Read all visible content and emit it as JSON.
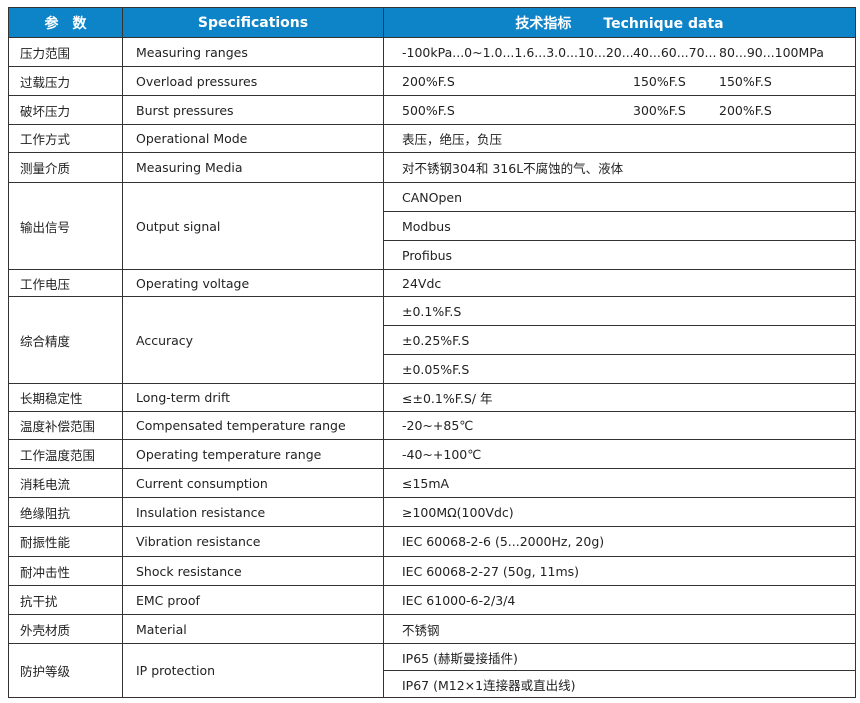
{
  "header": {
    "param": "参　数",
    "spec": "Specifications",
    "tech_cn": "技术指标",
    "tech_en": "Technique data"
  },
  "header_color": "#0e84c8",
  "rows": [
    {
      "cn": "压力范围",
      "en": "Measuring ranges",
      "h": 29,
      "cols": [
        "-100kPa...0~1.0...1.6...3.0...10...20...",
        "40...60...70...",
        "80...90...100MPa"
      ]
    },
    {
      "cn": "过载压力",
      "en": "Overload pressures",
      "h": 29,
      "cols": [
        "200%F.S",
        "150%F.S",
        "150%F.S"
      ]
    },
    {
      "cn": "破坏压力",
      "en": "Burst pressures",
      "h": 29,
      "cols": [
        "500%F.S",
        "300%F.S",
        "200%F.S"
      ]
    },
    {
      "cn": "工作方式",
      "en": "Operational Mode",
      "h": 28,
      "values": [
        "表压，绝压，负压"
      ]
    },
    {
      "cn": "测量介质",
      "en": "Measuring Media",
      "h": 30,
      "values": [
        "对不锈钢304和 316L不腐蚀的气、液体"
      ]
    },
    {
      "cn": "输出信号",
      "en": "Output signal",
      "h": 29,
      "values": [
        "CANOpen",
        "Modbus",
        "Profibus"
      ]
    },
    {
      "cn": "工作电压",
      "en": "Operating voltage",
      "h": 27,
      "values": [
        "24Vdc"
      ]
    },
    {
      "cn": "综合精度",
      "en": "Accuracy",
      "h": 29,
      "values": [
        "±0.1%F.S",
        "±0.25%F.S",
        "±0.05%F.S"
      ]
    },
    {
      "cn": "长期稳定性",
      "en": "Long-term drift",
      "h": 28,
      "values": [
        "≤±0.1%F.S/ 年"
      ]
    },
    {
      "cn": "温度补偿范围",
      "en": "Compensated temperature range",
      "h": 28,
      "values": [
        "-20~+85℃"
      ]
    },
    {
      "cn": "工作温度范围",
      "en": "Operating temperature range",
      "h": 29,
      "values": [
        "-40~+100℃"
      ]
    },
    {
      "cn": "消耗电流",
      "en": "Current consumption",
      "h": 29,
      "values": [
        "≤15mA"
      ]
    },
    {
      "cn": "绝缘阻抗",
      "en": "Insulation resistance",
      "h": 29,
      "values": [
        "≥100MΩ(100Vdc)"
      ]
    },
    {
      "cn": "耐振性能",
      "en": "Vibration resistance",
      "h": 30,
      "values": [
        "IEC 60068-2-6 (5...2000Hz, 20g)"
      ]
    },
    {
      "cn": "耐冲击性",
      "en": "Shock resistance",
      "h": 29,
      "values": [
        "IEC 60068-2-27 (50g, 11ms)"
      ]
    },
    {
      "cn": "抗干扰",
      "en": "EMC proof",
      "h": 29,
      "values": [
        "IEC 61000-6-2/3/4"
      ]
    },
    {
      "cn": "外壳材质",
      "en": "Material",
      "h": 29,
      "values": [
        "不锈钢"
      ]
    },
    {
      "cn": "防护等级",
      "en": "IP protection",
      "h": 27,
      "values": [
        "IP65 (赫斯曼接插件)",
        "IP67 (M12×1连接器或直出线)"
      ]
    }
  ]
}
